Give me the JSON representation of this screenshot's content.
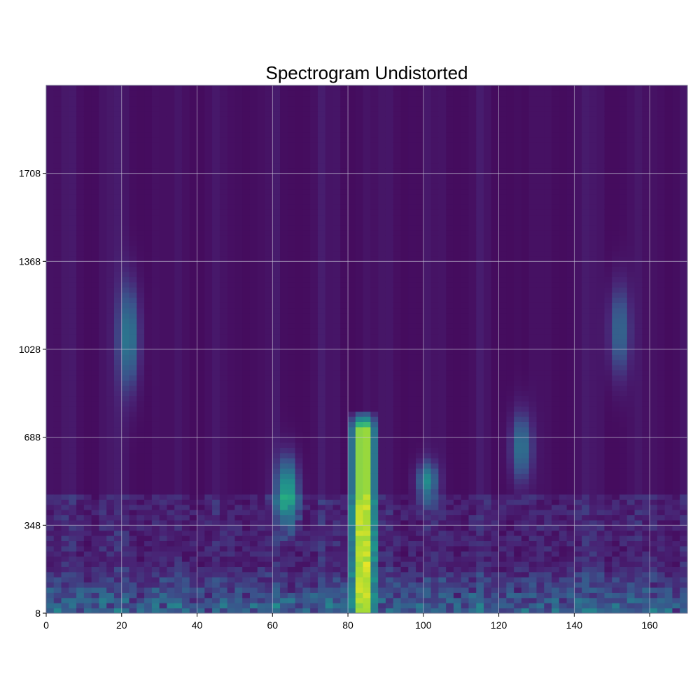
{
  "chart_data": {
    "type": "heatmap",
    "title": "Spectrogram Undistorted",
    "xlabel": "",
    "ylabel": "",
    "xlim": [
      0,
      170
    ],
    "ylim": [
      8,
      2048
    ],
    "x_ticks": [
      0,
      20,
      40,
      60,
      80,
      100,
      120,
      140,
      160
    ],
    "x_tick_labels": [
      "0",
      "20",
      "40",
      "60",
      "80",
      "100",
      "120",
      "140",
      "160"
    ],
    "y_ticks": [
      8,
      348,
      688,
      1028,
      1368,
      1708
    ],
    "y_tick_labels": [
      "8",
      "348",
      "688",
      "1028",
      "1368",
      "1708"
    ],
    "grid": true,
    "colormap": "viridis",
    "colors": {
      "background_low": "#440154",
      "mid": "#3b528b",
      "teal": "#21918c",
      "green": "#5ec962",
      "peak": "#fde725",
      "grid": "#c8c8d8"
    },
    "x_bins": 170,
    "y_bins": 2040,
    "features": [
      {
        "kind": "peak",
        "x": 84,
        "y_range": [
          8,
          720
        ],
        "intensity": 1.0
      },
      {
        "kind": "ridge",
        "x": 64,
        "y_range": [
          330,
          620
        ],
        "intensity": 0.55
      },
      {
        "kind": "ridge",
        "x": 22,
        "y_range": [
          850,
          1300
        ],
        "intensity": 0.35
      },
      {
        "kind": "ridge",
        "x": 101,
        "y_range": [
          440,
          600
        ],
        "intensity": 0.4
      },
      {
        "kind": "ridge",
        "x": 126,
        "y_range": [
          500,
          800
        ],
        "intensity": 0.35
      },
      {
        "kind": "ridge",
        "x": 152,
        "y_range": [
          900,
          1300
        ],
        "intensity": 0.3
      },
      {
        "kind": "low_band",
        "y_range": [
          8,
          200
        ],
        "intensity": 0.35
      }
    ]
  }
}
